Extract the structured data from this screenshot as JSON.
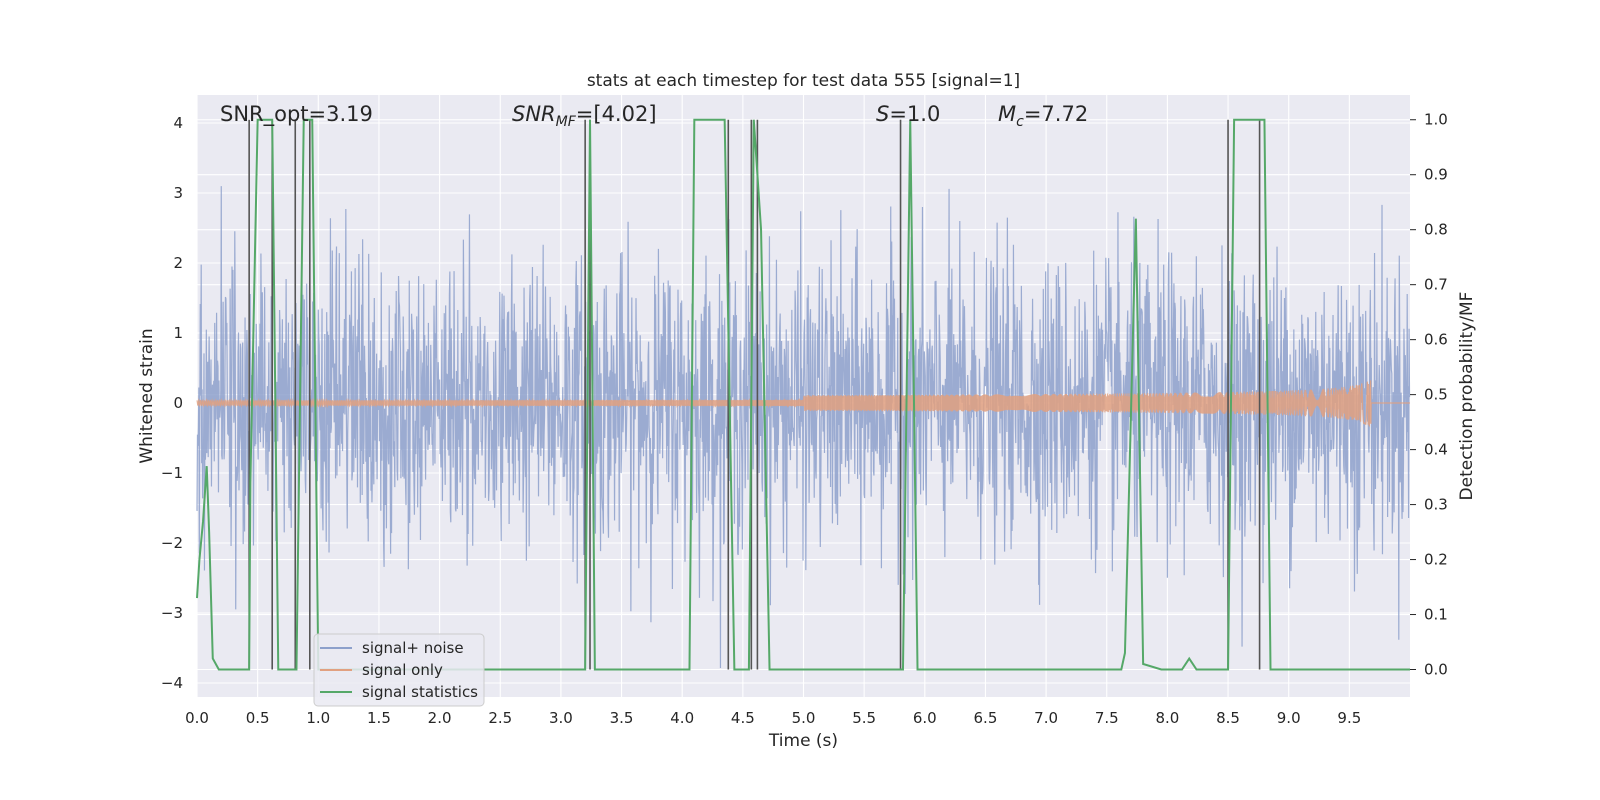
{
  "chart_data": {
    "type": "line",
    "title": "stats at each timestep for test data 555 [signal=1]",
    "xlabel": "Time (s)",
    "ylabel_left": "Whitened strain",
    "ylabel_right": "Detection probability/MF",
    "xlim": [
      0,
      10
    ],
    "ylim_left": [
      -4.2,
      4.4
    ],
    "ylim_right": [
      -0.05,
      1.045
    ],
    "x_ticks": [
      "0.0",
      "0.5",
      "1.0",
      "1.5",
      "2.0",
      "2.5",
      "3.0",
      "3.5",
      "4.0",
      "4.5",
      "5.0",
      "5.5",
      "6.0",
      "6.5",
      "7.0",
      "7.5",
      "8.0",
      "8.5",
      "9.0",
      "9.5"
    ],
    "y_ticks_left": [
      "4",
      "3",
      "2",
      "1",
      "0",
      "−1",
      "−2",
      "−3",
      "−4"
    ],
    "y_ticks_right": [
      "1.0",
      "0.9",
      "0.8",
      "0.7",
      "0.6",
      "0.5",
      "0.4",
      "0.3",
      "0.2",
      "0.1",
      "0.0"
    ],
    "grid": true,
    "legend_position": "lower-left",
    "annotations": {
      "snr_opt": "SNR_opt=3.19",
      "snr_mf_name": "SNR",
      "snr_mf_sub": "MF",
      "snr_mf_value": "=[4.02]",
      "s_name": "S",
      "s_value": "=1.0",
      "mc_name": "M",
      "mc_sub": "c",
      "mc_value": "=7.72"
    },
    "series": [
      {
        "name": "signal+ noise",
        "color": "#8da0cb",
        "axis": "left",
        "noise_sigma": 1.0,
        "duration_s": 10.0
      },
      {
        "name": "signal only",
        "color": "#e1a080",
        "axis": "left",
        "chirp_end_s": 9.68,
        "chirp_peak_amplitude": 0.37
      },
      {
        "name": "signal statistics",
        "color": "#55a868",
        "axis": "right",
        "x": [
          0.0,
          0.02,
          0.05,
          0.08,
          0.1,
          0.13,
          0.18,
          0.43,
          0.44,
          0.5,
          0.62,
          0.67,
          0.8,
          0.82,
          0.88,
          0.95,
          1.0,
          1.1,
          3.2,
          3.24,
          3.28,
          3.33,
          4.06,
          4.1,
          4.35,
          4.43,
          4.55,
          4.59,
          4.65,
          4.72,
          5.82,
          5.88,
          5.94,
          7.62,
          7.65,
          7.74,
          7.8,
          7.95,
          8.12,
          8.18,
          8.24,
          8.3,
          8.5,
          8.55,
          8.8,
          8.85,
          10.0
        ],
        "y": [
          0.13,
          0.2,
          0.27,
          0.37,
          0.25,
          0.02,
          0.0,
          0.0,
          0.34,
          1.0,
          1.0,
          0.0,
          0.0,
          0.0,
          1.0,
          1.0,
          0.0,
          0.0,
          0.0,
          1.0,
          0.0,
          0.0,
          0.0,
          1.0,
          1.0,
          0.0,
          0.0,
          1.0,
          0.8,
          0.0,
          0.0,
          1.0,
          0.0,
          0.0,
          0.03,
          0.82,
          0.01,
          0.0,
          0.0,
          0.02,
          0.0,
          0.0,
          0.0,
          1.0,
          1.0,
          0.0,
          0.0
        ]
      },
      {
        "name": "",
        "color": "#555555",
        "axis": "right",
        "x": [
          0.43,
          0.62,
          0.81,
          0.93,
          3.2,
          3.24,
          4.38,
          4.57,
          4.62,
          5.8,
          8.5,
          8.76
        ]
      }
    ]
  }
}
